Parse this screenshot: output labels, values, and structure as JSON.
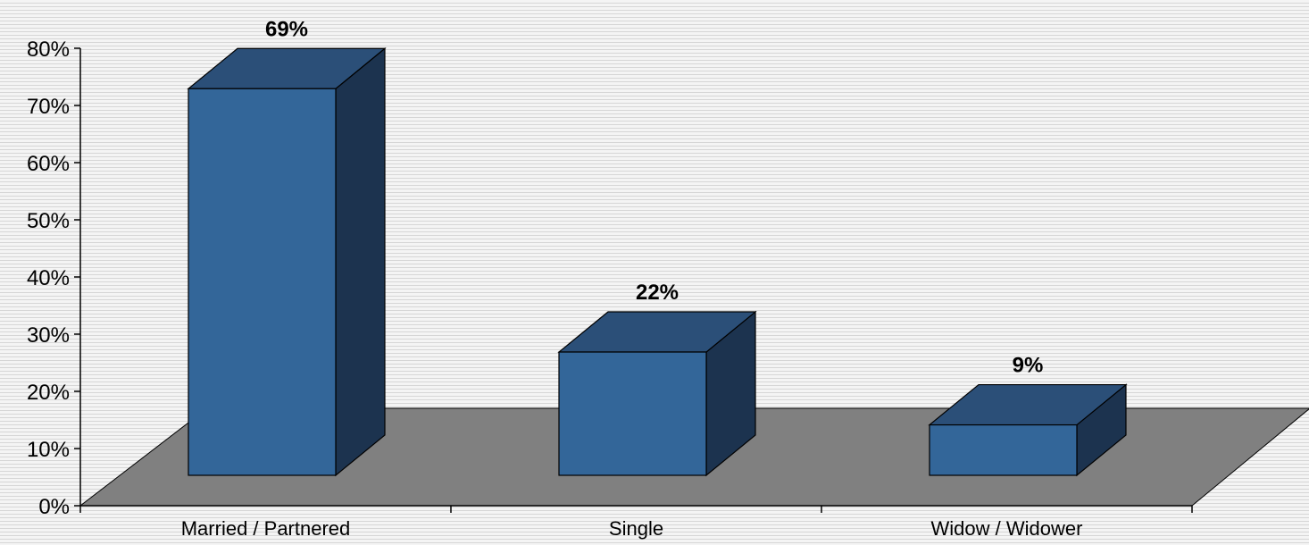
{
  "chart_data": {
    "type": "bar",
    "categories": [
      "Married / Partnered",
      "Single",
      "Widow / Widower"
    ],
    "values": [
      69,
      22,
      9
    ],
    "data_labels": [
      "69%",
      "22%",
      "9%"
    ],
    "ylim": [
      0,
      80
    ],
    "yticks": [
      0,
      10,
      20,
      30,
      40,
      50,
      60,
      70,
      80
    ],
    "ytick_labels": [
      "0%",
      "10%",
      "20%",
      "30%",
      "40%",
      "50%",
      "60%",
      "70%",
      "80%"
    ],
    "title": "",
    "xlabel": "",
    "ylabel": "",
    "three_d": true,
    "legend": "none",
    "colors": {
      "bar_front": "#336699",
      "bar_top": "#2b4f78",
      "bar_side": "#1c334f",
      "floor": "#808080",
      "background_stripe": "#d6d6d6"
    }
  }
}
